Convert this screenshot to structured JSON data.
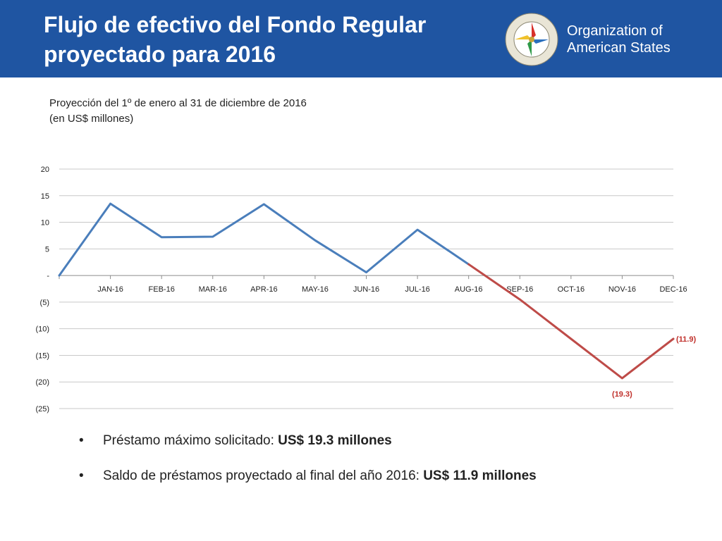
{
  "header": {
    "title_line1": "Flujo de efectivo del Fondo Regular",
    "title_line2": "proyectado para 2016",
    "org_line1": "Organization of",
    "org_line2": "American States"
  },
  "subtitle": {
    "line1": "Proyección del 1º  de enero al 31 de diciembre de 2016",
    "line2": "(en US$ millones)"
  },
  "chart_data": {
    "type": "line",
    "title": "",
    "xlabel": "",
    "ylabel": "",
    "ylim": [
      -25,
      20
    ],
    "yticks": [
      20,
      15,
      10,
      5,
      0,
      -5,
      -10,
      -15,
      -20,
      -25
    ],
    "ytick_labels": [
      "20",
      "15",
      "10",
      "5",
      "-",
      "(5)",
      "(10)",
      "(15)",
      "(20)",
      "(25)"
    ],
    "categories": [
      "",
      "JAN-16",
      "FEB-16",
      "MAR-16",
      "APR-16",
      "MAY-16",
      "JUN-16",
      "JUL-16",
      "AUG-16",
      "SEP-16",
      "OCT-16",
      "NOV-16",
      "DEC-16"
    ],
    "series": [
      {
        "color": "#4a7ebb",
        "x": [
          0,
          1,
          2,
          3,
          4,
          5,
          6,
          7,
          8
        ],
        "values": [
          0,
          13.5,
          7.2,
          7.3,
          13.4,
          6.6,
          0.6,
          8.6,
          2.1
        ]
      },
      {
        "color": "#be4b48",
        "x": [
          8,
          9,
          10,
          11,
          12
        ],
        "values": [
          2.1,
          -4.5,
          -11.9,
          -19.3,
          -11.9
        ]
      }
    ],
    "annotations": [
      {
        "x": 11,
        "y": -19.3,
        "text": "(19.3)",
        "color": "#c0302b"
      },
      {
        "x": 12,
        "y": -11.9,
        "text": "(11.9)",
        "color": "#c0302b"
      }
    ],
    "grid": true
  },
  "bullets": [
    {
      "marker": "•",
      "text": "Préstamo máximo solicitado: ",
      "bold": "US$ 19.3 millones"
    },
    {
      "marker": "•",
      "text": "Saldo de préstamos proyectado al final del año 2016: ",
      "bold": "US$ 11.9 millones"
    }
  ]
}
